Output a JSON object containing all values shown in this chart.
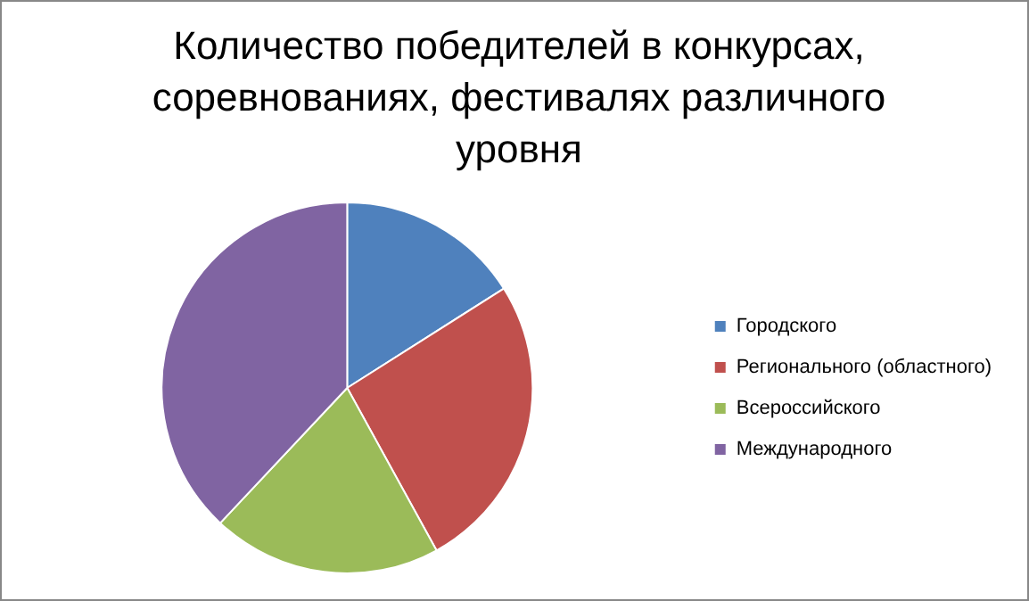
{
  "chart_data": {
    "type": "pie",
    "title": "Количество победителей в конкурсах, соревнованиях, фестивалях различного уровня",
    "categories": [
      "Городского",
      "Регионального (областного)",
      "Всероссийского",
      "Международного"
    ],
    "values": [
      16,
      26,
      20,
      38
    ],
    "colors": [
      "#4f81bd",
      "#c0504d",
      "#9bbb59",
      "#8064a2"
    ],
    "legend": "right"
  }
}
